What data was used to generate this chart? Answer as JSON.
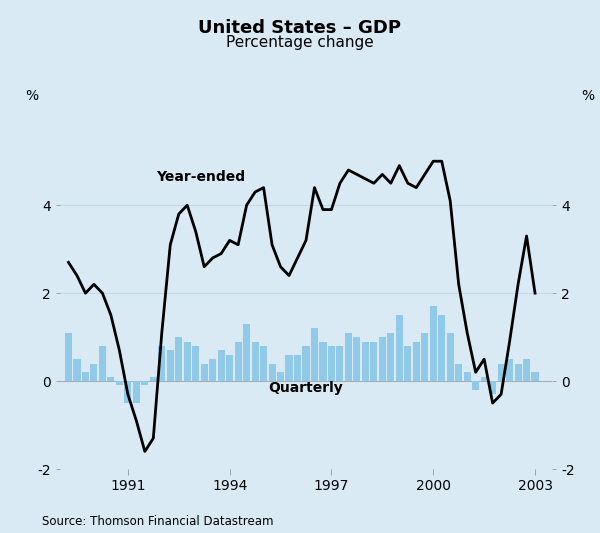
{
  "title": "United States – GDP",
  "subtitle": "Percentage change",
  "ylabel_left": "%",
  "ylabel_right": "%",
  "source": "Source: Thomson Financial Datastream",
  "background_color": "#daeaf5",
  "plot_bg_color": "#daeaf5",
  "bar_color": "#91c9e8",
  "line_color": "#000000",
  "ylim": [
    -2,
    6
  ],
  "yticks": [
    -2,
    0,
    2,
    4
  ],
  "annotation_year_ended": "Year-ended",
  "annotation_quarterly": "Quarterly",
  "start_year": 1989.25,
  "quarterly_data": {
    "quarterly_values": [
      1.1,
      0.5,
      0.2,
      0.4,
      0.8,
      0.1,
      -0.1,
      -0.5,
      -0.5,
      -0.1,
      0.1,
      0.8,
      0.7,
      1.0,
      0.9,
      0.8,
      0.4,
      0.5,
      0.7,
      0.6,
      0.9,
      1.3,
      0.9,
      0.8,
      0.4,
      0.2,
      0.6,
      0.6,
      0.8,
      1.2,
      0.9,
      0.8,
      0.8,
      1.1,
      1.0,
      0.9,
      0.9,
      1.0,
      1.1,
      1.5,
      0.8,
      0.9,
      1.1,
      1.7,
      1.5,
      1.1,
      0.4,
      0.2,
      -0.2,
      0.1,
      -0.3,
      0.4,
      0.5,
      0.4,
      0.5,
      0.2
    ],
    "year_ended_values": [
      2.7,
      2.4,
      2.0,
      2.2,
      2.0,
      1.5,
      0.7,
      -0.3,
      -0.9,
      -1.6,
      -1.3,
      1.1,
      3.1,
      3.8,
      4.0,
      3.4,
      2.6,
      2.8,
      2.9,
      3.2,
      3.1,
      4.0,
      4.3,
      4.4,
      3.1,
      2.6,
      2.4,
      2.8,
      3.2,
      4.4,
      3.9,
      3.9,
      4.5,
      4.8,
      4.7,
      4.6,
      4.5,
      4.7,
      4.5,
      4.9,
      4.5,
      4.4,
      4.7,
      5.0,
      5.0,
      4.1,
      2.2,
      1.1,
      0.2,
      0.5,
      -0.5,
      -0.3,
      0.9,
      2.2,
      3.3,
      2.0
    ]
  },
  "xtick_years": [
    "1991",
    "1994",
    "1997",
    "2000",
    "2003"
  ],
  "xtick_positions": [
    1991.0,
    1994.0,
    1997.0,
    2000.0,
    2003.0
  ],
  "xlim": [
    1989.0,
    2003.5
  ],
  "grid_color": "#c4d9e8",
  "line_width": 2.0
}
